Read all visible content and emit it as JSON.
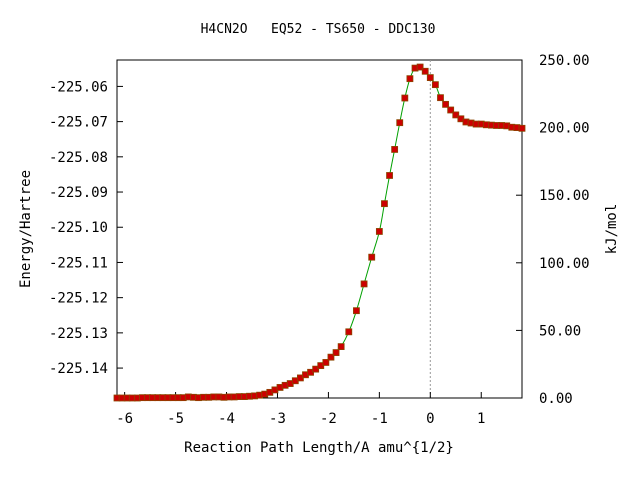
{
  "chart_data": {
    "type": "line",
    "title": "H4CN2O   EQ52 - TS650 - DDC130",
    "xlabel": "Reaction Path Length/A amu^{1/2}",
    "ylabel": "Energy/Hartree",
    "y2label": "kJ/mol",
    "xlim": [
      -6.15,
      1.8
    ],
    "ylim": [
      -225.1485,
      -225.0525
    ],
    "y2lim": [
      0.0,
      250.0
    ],
    "x_ticks": [
      "-6",
      "-5",
      "-4",
      "-3",
      "-2",
      "-1",
      "0",
      "1"
    ],
    "y_ticks": [
      "-225.06",
      "-225.07",
      "-225.08",
      "-225.09",
      "-225.10",
      "-225.11",
      "-225.12",
      "-225.13",
      "-225.14"
    ],
    "y2_ticks": [
      "0.00",
      "50.00",
      "100.00",
      "150.00",
      "200.00",
      "250.00"
    ],
    "ts_marker_x": 0.0,
    "grid": false,
    "colors": {
      "line": "#00a000",
      "points": "#cc0000",
      "point_edge": "#8b4500",
      "ts_line": "#999999"
    },
    "series": [
      {
        "x": [
          -6.15,
          -6.05,
          -5.95,
          -5.85,
          -5.75,
          -5.65,
          -5.55,
          -5.45,
          -5.35,
          -5.25,
          -5.15,
          -5.05,
          -4.95,
          -4.85,
          -4.75,
          -4.65,
          -4.55,
          -4.45,
          -4.35,
          -4.25,
          -4.15,
          -4.05,
          -3.95,
          -3.85,
          -3.75,
          -3.65,
          -3.55,
          -3.45,
          -3.35,
          -3.25,
          -3.15,
          -3.05,
          -2.95,
          -2.85,
          -2.75,
          -2.65,
          -2.55,
          -2.45,
          -2.35,
          -2.25,
          -2.15,
          -2.05,
          -1.95,
          -1.85,
          -1.75,
          -1.6,
          -1.45,
          -1.3,
          -1.15,
          -1.0,
          -0.9,
          -0.8,
          -0.7,
          -0.6,
          -0.5,
          -0.4,
          -0.3,
          -0.2,
          -0.1,
          0.0,
          0.1,
          0.2,
          0.3,
          0.4,
          0.5,
          0.6,
          0.7,
          0.8,
          0.9,
          1.0,
          1.1,
          1.2,
          1.3,
          1.4,
          1.5,
          1.6,
          1.7,
          1.8
        ],
        "y": [
          -225.1485,
          -225.1485,
          -225.1485,
          -225.1485,
          -225.1485,
          -225.1484,
          -225.1484,
          -225.1484,
          -225.1484,
          -225.1484,
          -225.1484,
          -225.1484,
          -225.1484,
          -225.1484,
          -225.1482,
          -225.1483,
          -225.1484,
          -225.1483,
          -225.1483,
          -225.1482,
          -225.1482,
          -225.1483,
          -225.1482,
          -225.1482,
          -225.1481,
          -225.1481,
          -225.148,
          -225.1479,
          -225.1477,
          -225.1474,
          -225.1469,
          -225.1462,
          -225.1455,
          -225.1449,
          -225.1444,
          -225.1436,
          -225.1428,
          -225.1419,
          -225.1412,
          -225.1403,
          -225.1393,
          -225.1384,
          -225.1369,
          -225.1356,
          -225.1339,
          -225.1297,
          -225.1237,
          -225.1161,
          -225.1085,
          -225.1012,
          -225.0933,
          -225.0853,
          -225.0779,
          -225.0703,
          -225.0633,
          -225.0578,
          -225.0548,
          -225.0545,
          -225.0557,
          -225.0575,
          -225.0595,
          -225.0632,
          -225.0651,
          -225.0667,
          -225.0681,
          -225.0692,
          -225.0701,
          -225.0704,
          -225.0707,
          -225.0707,
          -225.0709,
          -225.071,
          -225.0711,
          -225.0711,
          -225.0712,
          -225.0716,
          -225.0717,
          -225.0719
        ]
      }
    ]
  }
}
